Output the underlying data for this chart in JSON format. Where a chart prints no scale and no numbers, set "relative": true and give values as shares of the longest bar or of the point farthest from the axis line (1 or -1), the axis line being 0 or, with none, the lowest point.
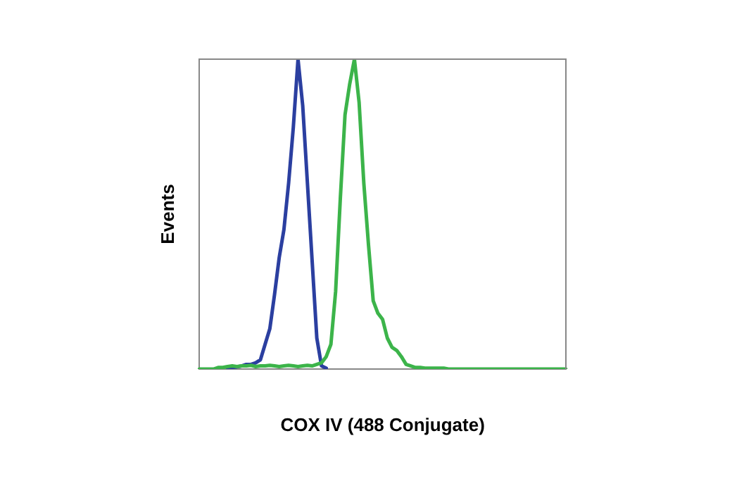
{
  "chart_data": {
    "type": "line",
    "relative": true,
    "xlabel": "COX IV (488 Conjugate)",
    "ylabel": "Events",
    "grid": false,
    "legend": false,
    "marker": "none",
    "line_style": "solid",
    "categories": [
      null,
      null,
      null,
      null,
      null,
      null,
      null,
      null,
      null,
      null,
      null,
      null,
      null,
      null,
      null,
      null,
      null,
      null,
      null,
      null,
      null,
      null,
      null,
      null,
      null,
      null,
      null,
      null,
      null,
      null,
      null,
      null,
      null,
      null,
      null,
      null,
      null,
      null,
      null,
      null,
      null,
      null,
      null,
      null,
      null,
      null,
      null,
      null,
      null,
      null,
      null,
      null,
      null,
      null,
      null,
      null,
      null,
      null,
      null,
      null,
      null,
      null,
      null,
      null,
      null,
      null,
      null,
      null,
      null,
      null,
      null,
      null,
      null,
      null,
      null,
      null,
      null,
      null,
      null
    ],
    "series": [
      {
        "color": "#2b3fa0",
        "values": [
          null,
          null,
          null,
          null,
          null,
          null,
          0.003,
          0.005,
          0.007,
          0.01,
          0.015,
          0.015,
          0.02,
          0.03,
          0.08,
          0.13,
          0.24,
          0.36,
          0.45,
          0.6,
          0.78,
          1,
          0.85,
          0.6,
          0.35,
          0.1,
          0.01,
          0.003,
          null,
          null,
          null,
          null,
          null,
          null,
          null,
          null,
          null,
          null,
          null,
          null,
          null,
          null,
          null,
          null,
          null,
          null,
          null,
          null,
          null,
          null,
          null,
          null,
          null,
          null,
          null,
          null,
          null,
          null,
          null,
          null,
          null,
          null,
          null,
          null,
          null,
          null,
          null,
          null,
          null,
          null,
          null,
          null,
          null,
          null,
          null,
          null,
          null,
          null,
          null
        ]
      },
      {
        "color": "#3cb44a",
        "values": [
          0,
          0,
          0,
          0,
          0.005,
          0.005,
          0.008,
          0.01,
          0.008,
          0.01,
          0.01,
          0.012,
          0.008,
          0.01,
          0.01,
          0.012,
          0.01,
          0.008,
          0.01,
          0.012,
          0.01,
          0.008,
          0.01,
          0.012,
          0.01,
          0.015,
          0.02,
          0.04,
          0.08,
          0.25,
          0.55,
          0.82,
          0.92,
          1,
          0.86,
          0.6,
          0.4,
          0.22,
          0.18,
          0.16,
          0.1,
          0.07,
          0.06,
          0.04,
          0.015,
          0.01,
          0.005,
          0.005,
          0.003,
          0.003,
          0.003,
          0.003,
          0.003,
          0,
          0,
          0,
          0,
          0,
          0,
          0,
          0,
          0,
          0,
          0,
          0,
          0,
          0,
          0,
          0,
          0,
          0,
          0,
          0,
          0,
          0,
          0,
          0,
          0,
          0
        ]
      }
    ]
  }
}
